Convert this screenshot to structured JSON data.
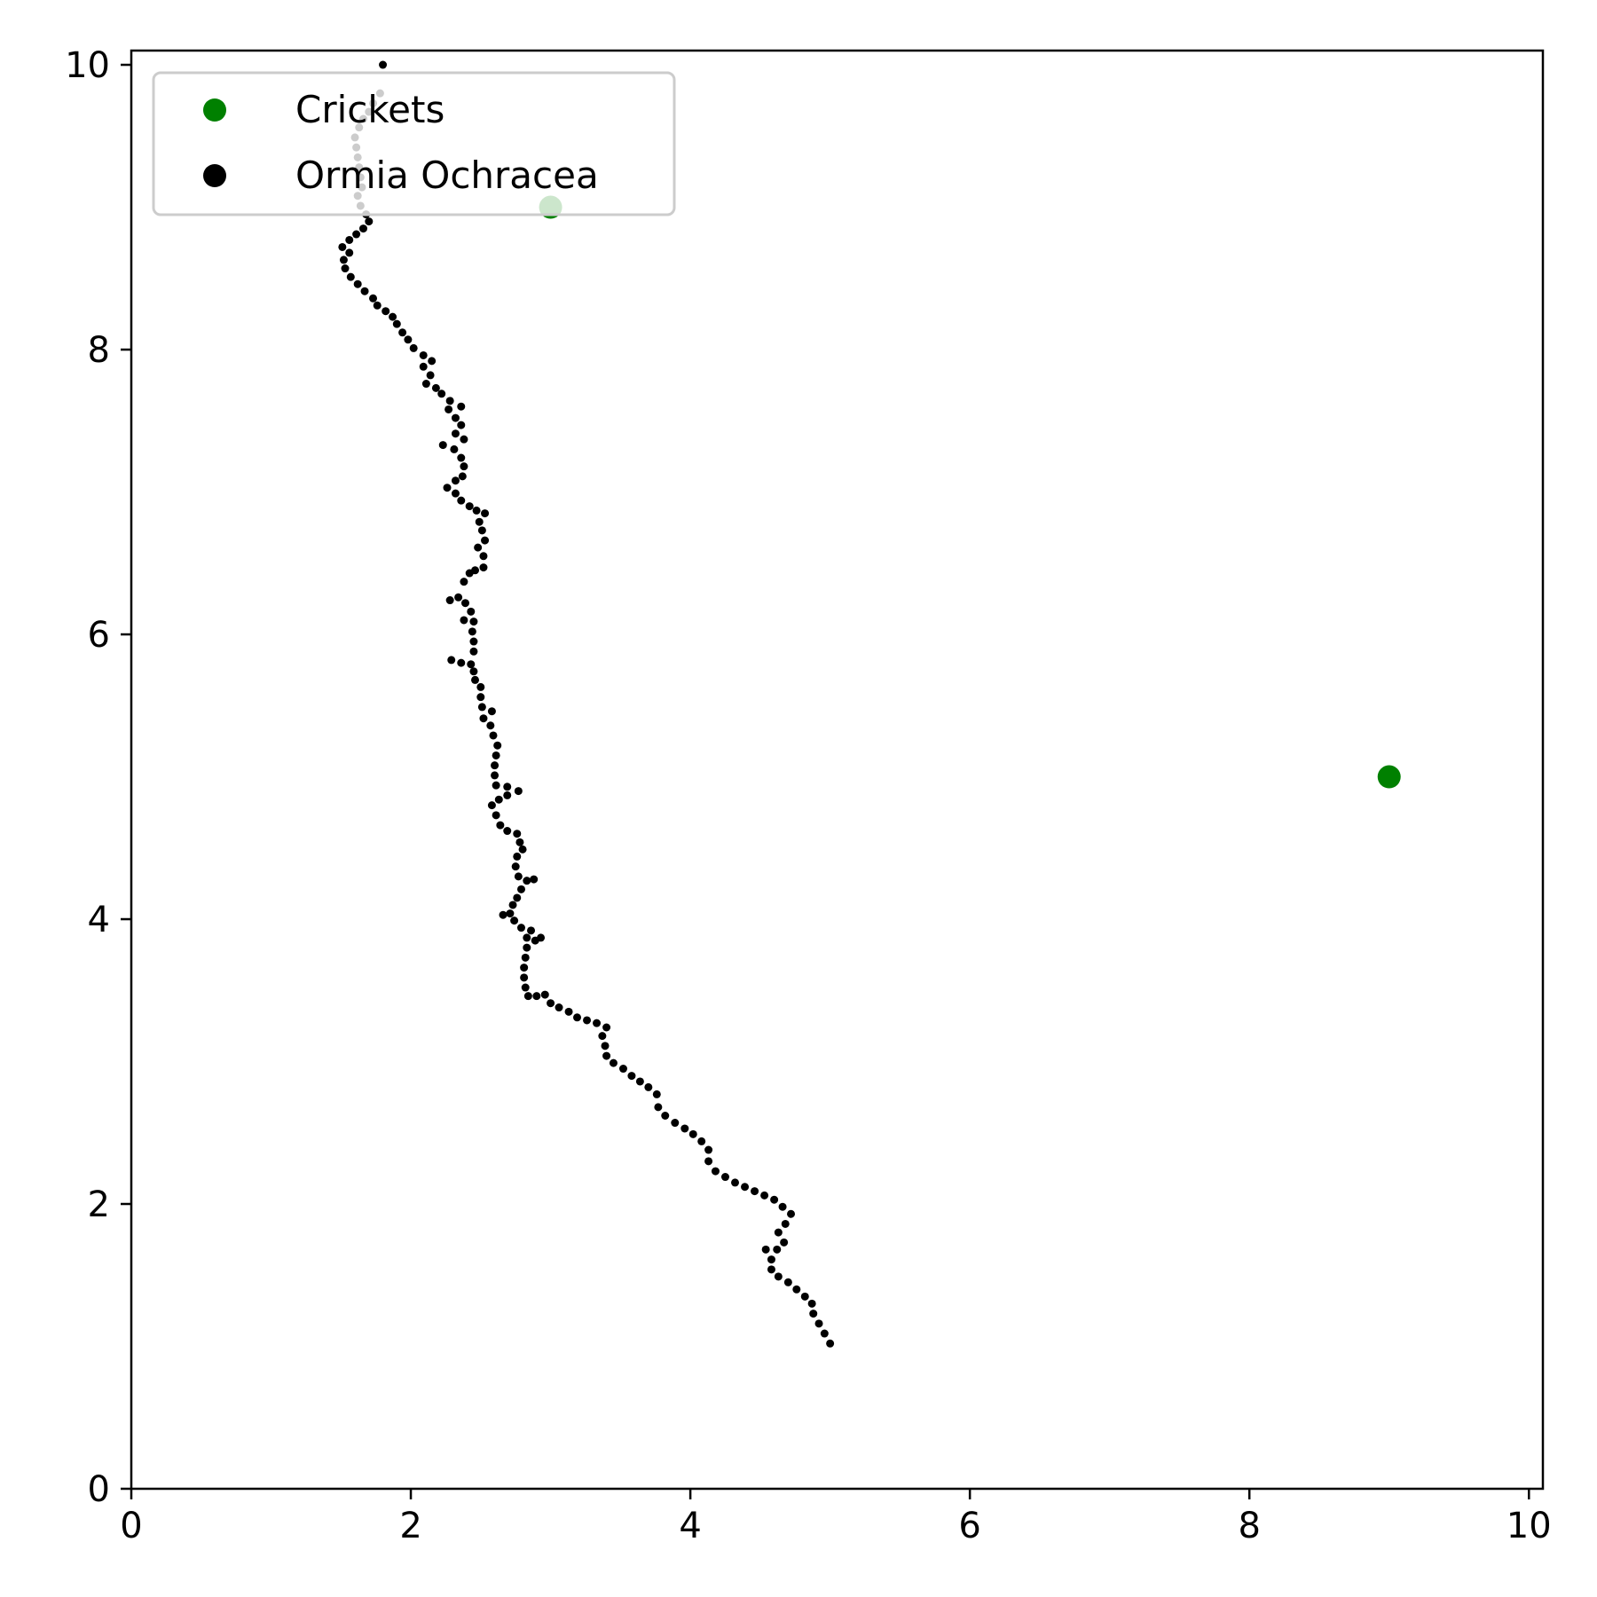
{
  "chart_data": {
    "type": "scatter",
    "title": "",
    "xlabel": "",
    "ylabel": "",
    "xlim": [
      0,
      10.1
    ],
    "ylim": [
      0,
      10.1
    ],
    "x_ticks": [
      "0",
      "2",
      "4",
      "6",
      "8",
      "10"
    ],
    "y_ticks": [
      "0",
      "2",
      "4",
      "6",
      "8",
      "10"
    ],
    "grid": false,
    "legend_position": "upper-left",
    "series": [
      {
        "name": "Crickets",
        "color": "#008000",
        "marker": "circle",
        "points": [
          [
            3.0,
            9.0
          ],
          [
            9.0,
            5.0
          ]
        ]
      },
      {
        "name": "Ormia Ochracea",
        "color": "#000000",
        "marker": "circle-small",
        "points": [
          [
            5.0,
            1.02
          ],
          [
            4.96,
            1.09
          ],
          [
            4.92,
            1.16
          ],
          [
            4.88,
            1.23
          ],
          [
            4.87,
            1.3
          ],
          [
            4.82,
            1.35
          ],
          [
            4.76,
            1.4
          ],
          [
            4.7,
            1.45
          ],
          [
            4.63,
            1.49
          ],
          [
            4.58,
            1.54
          ],
          [
            4.58,
            1.61
          ],
          [
            4.54,
            1.68
          ],
          [
            4.62,
            1.68
          ],
          [
            4.67,
            1.73
          ],
          [
            4.63,
            1.8
          ],
          [
            4.68,
            1.86
          ],
          [
            4.72,
            1.93
          ],
          [
            4.66,
            1.98
          ],
          [
            4.6,
            2.03
          ],
          [
            4.53,
            2.06
          ],
          [
            4.46,
            2.09
          ],
          [
            4.39,
            2.12
          ],
          [
            4.32,
            2.15
          ],
          [
            4.25,
            2.19
          ],
          [
            4.18,
            2.23
          ],
          [
            4.13,
            2.3
          ],
          [
            4.13,
            2.38
          ],
          [
            4.08,
            2.44
          ],
          [
            4.02,
            2.49
          ],
          [
            3.96,
            2.53
          ],
          [
            3.89,
            2.57
          ],
          [
            3.82,
            2.62
          ],
          [
            3.77,
            2.68
          ],
          [
            3.76,
            2.77
          ],
          [
            3.7,
            2.82
          ],
          [
            3.64,
            2.86
          ],
          [
            3.58,
            2.9
          ],
          [
            3.52,
            2.95
          ],
          [
            3.45,
            2.99
          ],
          [
            3.4,
            3.04
          ],
          [
            3.39,
            3.11
          ],
          [
            3.37,
            3.18
          ],
          [
            3.4,
            3.24
          ],
          [
            3.33,
            3.27
          ],
          [
            3.26,
            3.29
          ],
          [
            3.19,
            3.31
          ],
          [
            3.13,
            3.35
          ],
          [
            3.06,
            3.38
          ],
          [
            3.0,
            3.41
          ],
          [
            2.96,
            3.47
          ],
          [
            2.9,
            3.46
          ],
          [
            2.84,
            3.46
          ],
          [
            2.82,
            3.52
          ],
          [
            2.81,
            3.59
          ],
          [
            2.81,
            3.66
          ],
          [
            2.82,
            3.73
          ],
          [
            2.83,
            3.8
          ],
          [
            2.83,
            3.87
          ],
          [
            2.89,
            3.85
          ],
          [
            2.93,
            3.87
          ],
          [
            2.86,
            3.92
          ],
          [
            2.79,
            3.94
          ],
          [
            2.74,
            3.99
          ],
          [
            2.71,
            4.04
          ],
          [
            2.66,
            4.03
          ],
          [
            2.73,
            4.1
          ],
          [
            2.76,
            4.15
          ],
          [
            2.79,
            4.21
          ],
          [
            2.83,
            4.27
          ],
          [
            2.88,
            4.28
          ],
          [
            2.77,
            4.3
          ],
          [
            2.75,
            4.37
          ],
          [
            2.76,
            4.44
          ],
          [
            2.8,
            4.49
          ],
          [
            2.78,
            4.54
          ],
          [
            2.76,
            4.6
          ],
          [
            2.69,
            4.62
          ],
          [
            2.64,
            4.66
          ],
          [
            2.61,
            4.73
          ],
          [
            2.58,
            4.8
          ],
          [
            2.63,
            4.84
          ],
          [
            2.69,
            4.87
          ],
          [
            2.77,
            4.9
          ],
          [
            2.69,
            4.93
          ],
          [
            2.61,
            4.94
          ],
          [
            2.6,
            5.01
          ],
          [
            2.6,
            5.08
          ],
          [
            2.61,
            5.15
          ],
          [
            2.62,
            5.22
          ],
          [
            2.59,
            5.29
          ],
          [
            2.57,
            5.36
          ],
          [
            2.52,
            5.41
          ],
          [
            2.58,
            5.46
          ],
          [
            2.51,
            5.49
          ],
          [
            2.5,
            5.56
          ],
          [
            2.5,
            5.63
          ],
          [
            2.46,
            5.68
          ],
          [
            2.45,
            5.74
          ],
          [
            2.43,
            5.79
          ],
          [
            2.36,
            5.8
          ],
          [
            2.29,
            5.82
          ],
          [
            2.45,
            5.88
          ],
          [
            2.45,
            5.95
          ],
          [
            2.44,
            6.02
          ],
          [
            2.45,
            6.09
          ],
          [
            2.38,
            6.1
          ],
          [
            2.43,
            6.16
          ],
          [
            2.39,
            6.22
          ],
          [
            2.34,
            6.26
          ],
          [
            2.28,
            6.24
          ],
          [
            2.38,
            6.37
          ],
          [
            2.42,
            6.43
          ],
          [
            2.46,
            6.45
          ],
          [
            2.52,
            6.47
          ],
          [
            2.52,
            6.55
          ],
          [
            2.48,
            6.61
          ],
          [
            2.53,
            6.66
          ],
          [
            2.51,
            6.73
          ],
          [
            2.49,
            6.79
          ],
          [
            2.53,
            6.85
          ],
          [
            2.47,
            6.87
          ],
          [
            2.42,
            6.9
          ],
          [
            2.36,
            6.94
          ],
          [
            2.32,
            6.99
          ],
          [
            2.26,
            7.03
          ],
          [
            2.32,
            7.08
          ],
          [
            2.37,
            7.11
          ],
          [
            2.38,
            7.18
          ],
          [
            2.36,
            7.24
          ],
          [
            2.31,
            7.3
          ],
          [
            2.23,
            7.33
          ],
          [
            2.38,
            7.37
          ],
          [
            2.32,
            7.41
          ],
          [
            2.36,
            7.47
          ],
          [
            2.32,
            7.52
          ],
          [
            2.27,
            7.58
          ],
          [
            2.36,
            7.6
          ],
          [
            2.28,
            7.64
          ],
          [
            2.22,
            7.69
          ],
          [
            2.18,
            7.73
          ],
          [
            2.11,
            7.76
          ],
          [
            2.14,
            7.82
          ],
          [
            2.09,
            7.88
          ],
          [
            2.15,
            7.92
          ],
          [
            2.09,
            7.96
          ],
          [
            2.02,
            8.01
          ],
          [
            1.98,
            8.07
          ],
          [
            1.94,
            8.12
          ],
          [
            1.9,
            8.18
          ],
          [
            1.87,
            8.23
          ],
          [
            1.82,
            8.27
          ],
          [
            1.76,
            8.31
          ],
          [
            1.73,
            8.36
          ],
          [
            1.67,
            8.41
          ],
          [
            1.62,
            8.46
          ],
          [
            1.57,
            8.51
          ],
          [
            1.53,
            8.57
          ],
          [
            1.52,
            8.63
          ],
          [
            1.56,
            8.68
          ],
          [
            1.51,
            8.72
          ],
          [
            1.56,
            8.77
          ],
          [
            1.61,
            8.81
          ],
          [
            1.66,
            8.85
          ],
          [
            1.7,
            8.9
          ],
          [
            1.68,
            8.95
          ],
          [
            1.64,
            9.01
          ],
          [
            1.62,
            9.08
          ],
          [
            1.65,
            9.14
          ],
          [
            1.64,
            9.21
          ],
          [
            1.63,
            9.28
          ],
          [
            1.62,
            9.35
          ],
          [
            1.61,
            9.42
          ],
          [
            1.6,
            9.49
          ],
          [
            1.63,
            9.56
          ],
          [
            1.66,
            9.62
          ],
          [
            1.7,
            9.67
          ],
          [
            1.73,
            9.73
          ],
          [
            1.78,
            9.8
          ],
          [
            1.8,
            10.0
          ]
        ]
      }
    ]
  }
}
